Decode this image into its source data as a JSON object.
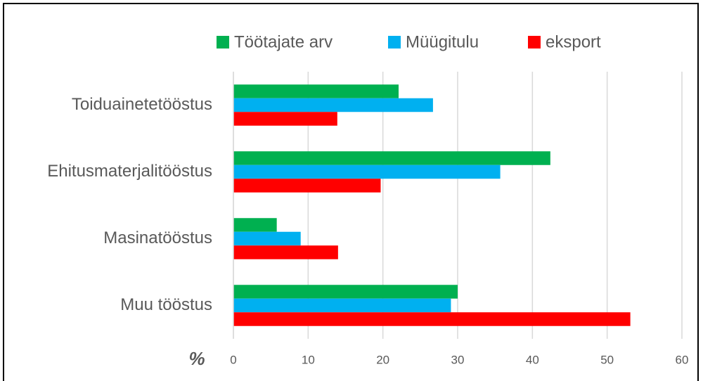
{
  "chart_data": {
    "type": "hbar",
    "categories": [
      "Toiduainetetööstus",
      "Ehitusmaterjalitööstus",
      "Masinatööstus",
      "Muu tööstus"
    ],
    "series": [
      {
        "name": "Töötajate arv",
        "color": "#00b050",
        "values": [
          22.1,
          42.4,
          5.8,
          30.0
        ]
      },
      {
        "name": "Müügitulu",
        "color": "#00b0f0",
        "values": [
          26.7,
          35.7,
          9.0,
          29.1
        ]
      },
      {
        "name": "eksport",
        "color": "#ff0000",
        "values": [
          13.9,
          19.7,
          14.0,
          53.1
        ]
      }
    ],
    "xlabel": "%",
    "xlim": [
      0,
      60
    ],
    "xticks": [
      0,
      10,
      20,
      30,
      40,
      50,
      60
    ],
    "grid": true,
    "legend": "top"
  }
}
